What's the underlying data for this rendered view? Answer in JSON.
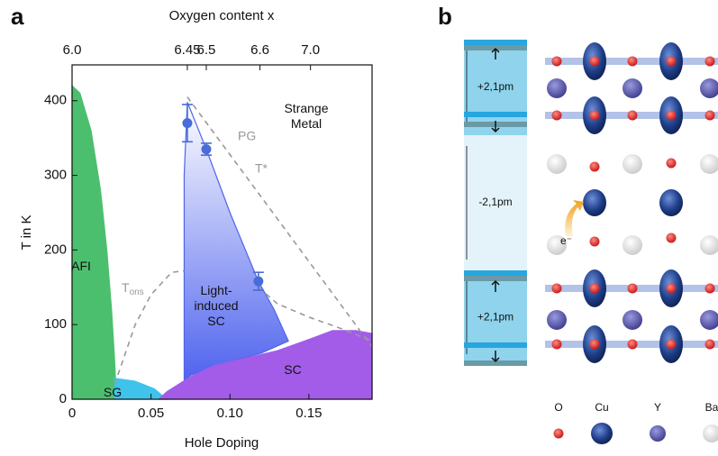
{
  "chart_data": {
    "type": "phase",
    "panel": "a",
    "xlabel": "Hole Doping",
    "ylabel": "T in K",
    "x2label": "Oxygen content x",
    "xlim": [
      0,
      0.19
    ],
    "ylim": [
      0,
      448
    ],
    "xticks": [
      0,
      0.05,
      {
        "value": 0.1,
        "label": "0.10"
      },
      0.15
    ],
    "yticks": [
      0,
      100,
      200,
      300,
      400
    ],
    "x2ticks": [
      {
        "value": 0,
        "label": "6.0"
      },
      {
        "value": 0.073,
        "label": "6.45"
      },
      {
        "value": 0.085,
        "label": "6.5"
      },
      {
        "value": 0.119,
        "label": "6.6"
      },
      {
        "value": 0.151,
        "label": "7.0"
      }
    ],
    "regions": [
      {
        "name": "AFI",
        "color": "#4cbf6e",
        "x": [
          0,
          0,
          0.005,
          0.012,
          0.018,
          0.022,
          0.025,
          0.027,
          0.028
        ],
        "values": [
          0,
          420,
          410,
          360,
          280,
          200,
          120,
          50,
          0
        ]
      },
      {
        "name": "SG",
        "color": "#3fc3ea",
        "x": [
          0.027,
          0.027,
          0.04,
          0.052,
          0.06
        ],
        "values": [
          0,
          28,
          24,
          14,
          0
        ]
      },
      {
        "name": "Light-induced SC",
        "color": "#4f63ee",
        "x": [
          0.071,
          0.071,
          0.073,
          0.078,
          0.085,
          0.1,
          0.118,
          0.128,
          0.137,
          0.12,
          0.1,
          0.085,
          0.075
        ],
        "values": [
          25,
          300,
          398,
          372,
          335,
          250,
          158,
          120,
          78,
          62,
          50,
          40,
          32
        ]
      },
      {
        "name": "SC",
        "color": "#a35ce8",
        "x": [
          0.055,
          0.06,
          0.075,
          0.09,
          0.11,
          0.13,
          0.15,
          0.165,
          0.18,
          0.19,
          0.19
        ],
        "values": [
          0,
          10,
          30,
          45,
          55,
          65,
          80,
          92,
          92,
          88,
          0
        ]
      }
    ],
    "lines": [
      {
        "color": "#999999",
        "x": [
          0.073,
          0.19
        ],
        "values": [
          405,
          70
        ]
      },
      {
        "color": "#999999",
        "x": [
          0.027,
          0.04,
          0.05,
          0.063,
          0.071
        ],
        "values": [
          20,
          100,
          140,
          170,
          172
        ]
      },
      {
        "color": "#999999",
        "x": [
          0.118,
          0.13,
          0.15,
          0.17,
          0.19
        ],
        "values": [
          150,
          128,
          110,
          95,
          78
        ]
      }
    ],
    "points": {
      "color": "#4a6cd8",
      "x": [
        0.073,
        0.085,
        0.118
      ],
      "values": [
        370,
        335,
        158
      ],
      "errors": [
        25,
        8,
        12
      ]
    },
    "annotations": [
      {
        "text": "PG"
      },
      {
        "text": "T*"
      },
      {
        "text": "Strange Metal"
      },
      {
        "text": "T",
        "sub": "ons"
      }
    ]
  },
  "structure": {
    "panel": "b",
    "displacements": [
      "+2,1pm",
      "-2,1pm",
      "+2,1pm"
    ],
    "electron": "e⁻",
    "legend": [
      "O",
      "Cu",
      "Y",
      "Ba"
    ]
  }
}
